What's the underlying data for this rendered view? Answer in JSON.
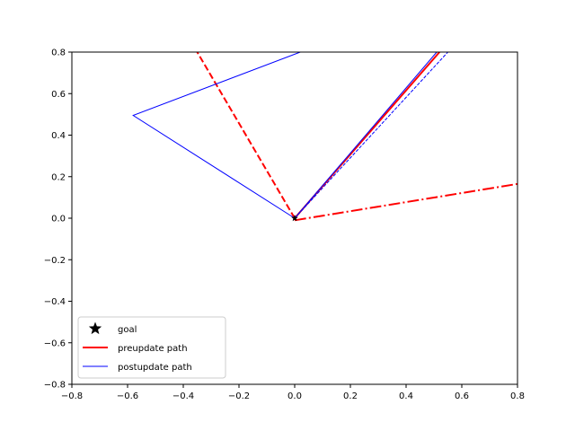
{
  "chart_data": {
    "type": "line",
    "xlim": [
      -0.8,
      0.8
    ],
    "ylim": [
      -0.8,
      0.8
    ],
    "xticks": [
      -0.8,
      -0.6,
      -0.4,
      -0.2,
      0.0,
      0.2,
      0.4,
      0.6,
      0.8
    ],
    "yticks": [
      -0.8,
      -0.6,
      -0.4,
      -0.2,
      0.0,
      0.2,
      0.4,
      0.6,
      0.8
    ],
    "xtick_labels": [
      "−0.8",
      "−0.6",
      "−0.4",
      "−0.2",
      "0.0",
      "0.2",
      "0.4",
      "0.6",
      "0.8"
    ],
    "ytick_labels": [
      "−0.8",
      "−0.6",
      "−0.4",
      "−0.2",
      "0.0",
      "0.2",
      "0.4",
      "0.6",
      "0.8"
    ],
    "grid": false,
    "legend_position": "lower-left",
    "series": [
      {
        "name": "goal",
        "kind": "marker",
        "marker": "star",
        "color": "#000000",
        "points": [
          [
            0.0,
            0.0
          ]
        ]
      },
      {
        "name": "preupdate path",
        "color": "#ff0000",
        "style": "solid",
        "width": 2,
        "points": [
          [
            0.0,
            0.0
          ],
          [
            0.52,
            0.8
          ]
        ]
      },
      {
        "color": "#ff0000",
        "style": "dashed",
        "width": 2,
        "points": [
          [
            0.0,
            0.0
          ],
          [
            -0.35,
            0.8
          ]
        ]
      },
      {
        "color": "#ff0000",
        "style": "dashdot",
        "width": 2,
        "points": [
          [
            0.0,
            -0.01
          ],
          [
            0.8,
            0.165
          ]
        ]
      },
      {
        "name": "postupdate path",
        "color": "#0000ff",
        "style": "solid",
        "width": 1,
        "points": [
          [
            0.0,
            0.0
          ],
          [
            -0.58,
            0.495
          ],
          [
            0.02,
            0.8
          ]
        ]
      },
      {
        "color": "#0000ff",
        "style": "solid",
        "width": 1,
        "points": [
          [
            0.0,
            0.0
          ],
          [
            0.51,
            0.8
          ]
        ]
      },
      {
        "color": "#0000ff",
        "style": "dashed",
        "width": 1,
        "points": [
          [
            0.0,
            0.0
          ],
          [
            0.55,
            0.8
          ]
        ]
      }
    ],
    "legend": [
      {
        "label": "goal",
        "kind": "marker",
        "color": "#000000"
      },
      {
        "label": "preupdate path",
        "kind": "line",
        "color": "#ff0000",
        "width": 2
      },
      {
        "label": "postupdate path",
        "kind": "line",
        "color": "#0000ff",
        "width": 1
      }
    ]
  }
}
